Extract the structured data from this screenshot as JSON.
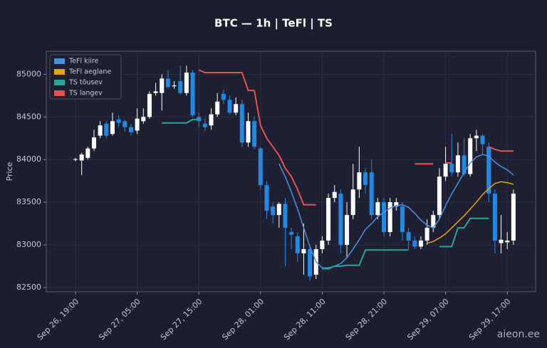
{
  "chart_data": {
    "type": "candlestick",
    "title": "BTC — 1h  |  TeFl  |  TS",
    "y_label": "Price",
    "watermark": "aieon.ee",
    "grid": true,
    "legend": "upper left",
    "up_color": "#ffffff",
    "down_color": "#1e8ae6",
    "ylim": [
      82450,
      85270
    ],
    "yticks": [
      82500,
      83000,
      83500,
      84000,
      84500,
      85000
    ],
    "categories": [
      "Sep 26, 19:00",
      null,
      null,
      null,
      null,
      null,
      null,
      null,
      null,
      null,
      "Sep 27, 05:00",
      null,
      null,
      null,
      null,
      null,
      null,
      null,
      null,
      null,
      "Sep 27, 15:00",
      null,
      null,
      null,
      null,
      null,
      null,
      null,
      null,
      null,
      "Sep 28, 01:00",
      null,
      null,
      null,
      null,
      null,
      null,
      null,
      null,
      null,
      "Sep 28, 11:00",
      null,
      null,
      null,
      null,
      null,
      null,
      null,
      null,
      null,
      "Sep 28, 21:00",
      null,
      null,
      null,
      null,
      null,
      null,
      null,
      null,
      null,
      "Sep 29, 07:00",
      null,
      null,
      null,
      null,
      null,
      null,
      null,
      null,
      null,
      "Sep 29, 17:00",
      null
    ],
    "open": [
      84000,
      83990,
      84020,
      84130,
      84280,
      84420,
      84300,
      84470,
      84450,
      84380,
      84340,
      84450,
      84500,
      84780,
      84780,
      84950,
      84860,
      84920,
      84780,
      85020,
      84500,
      84420,
      84400,
      84530,
      84770,
      84700,
      84550,
      84650,
      84200,
      84450,
      84130,
      83700,
      83450,
      83350,
      83480,
      83150,
      83100,
      82900,
      82950,
      82650,
      82950,
      83050,
      83550,
      83600,
      83000,
      83350,
      83650,
      83850,
      83850,
      83350,
      83500,
      83150,
      83450,
      83450,
      83150,
      83050,
      82980,
      83050,
      83200,
      83350,
      83800,
      83950,
      83850,
      84050,
      83830,
      84250,
      84280,
      84150,
      83600,
      83020,
      83030,
      83050
    ],
    "close": [
      84005,
      84060,
      84130,
      84260,
      84400,
      84280,
      84450,
      84430,
      84380,
      84320,
      84480,
      84500,
      84770,
      84800,
      84950,
      84850,
      84870,
      84780,
      85020,
      84520,
      84450,
      84380,
      84530,
      84680,
      84700,
      84550,
      84650,
      84200,
      84450,
      84150,
      83700,
      83400,
      83350,
      83480,
      83200,
      83120,
      82900,
      82950,
      82630,
      82950,
      83050,
      83550,
      83620,
      83000,
      83350,
      83650,
      83850,
      83700,
      83350,
      83500,
      83150,
      83500,
      83500,
      83150,
      83050,
      82980,
      83050,
      83200,
      83350,
      83800,
      83950,
      83850,
      84050,
      83830,
      84250,
      84280,
      84180,
      83600,
      83050,
      83060,
      83050,
      83600
    ],
    "high": [
      84020,
      84080,
      84150,
      84350,
      84450,
      84450,
      84550,
      84520,
      84470,
      84420,
      84600,
      84600,
      84800,
      84900,
      85000,
      85050,
      84920,
      85100,
      85100,
      85050,
      84550,
      84480,
      84600,
      84780,
      84820,
      84750,
      84730,
      84700,
      84550,
      84500,
      84150,
      83750,
      83500,
      83500,
      83550,
      83200,
      83150,
      83250,
      83000,
      83000,
      83100,
      83600,
      83700,
      83650,
      83500,
      83950,
      84150,
      83900,
      84000,
      83550,
      83550,
      83550,
      83550,
      83500,
      83200,
      83100,
      83100,
      83300,
      83400,
      83900,
      84150,
      84300,
      84200,
      84250,
      84300,
      84350,
      84300,
      84200,
      83650,
      83350,
      83150,
      83650
    ],
    "low": [
      83980,
      83820,
      84000,
      84100,
      84250,
      84250,
      84280,
      84380,
      84330,
      84280,
      84300,
      84420,
      84480,
      84750,
      84575,
      84830,
      84830,
      84760,
      84750,
      84500,
      84380,
      84330,
      84350,
      84500,
      84650,
      84530,
      84520,
      84150,
      84150,
      84120,
      83650,
      83300,
      83250,
      83200,
      82750,
      82950,
      82800,
      82650,
      82580,
      82600,
      82900,
      83000,
      83500,
      82900,
      82850,
      83300,
      83550,
      83600,
      83300,
      83300,
      83100,
      83100,
      83400,
      83050,
      82950,
      82950,
      82950,
      83000,
      83150,
      83300,
      83750,
      83800,
      83800,
      83800,
      83800,
      84100,
      84050,
      83500,
      82900,
      82900,
      82950,
      83000
    ],
    "series": [
      {
        "name": "TeFl kiire",
        "color": "#4a90e2",
        "style": "line",
        "values": [
          null,
          null,
          null,
          null,
          null,
          null,
          null,
          null,
          null,
          null,
          null,
          null,
          null,
          null,
          null,
          null,
          null,
          null,
          null,
          null,
          null,
          null,
          null,
          null,
          null,
          null,
          null,
          null,
          null,
          null,
          null,
          null,
          null,
          83950,
          83800,
          83620,
          83420,
          83200,
          82980,
          82800,
          82730,
          82730,
          82750,
          82780,
          82850,
          82950,
          83060,
          83180,
          83250,
          83330,
          83380,
          83430,
          83460,
          83470,
          83440,
          83370,
          83290,
          83230,
          83200,
          83300,
          83460,
          83600,
          83720,
          83850,
          83960,
          84030,
          84060,
          84040,
          83970,
          83920,
          83880,
          83820
        ]
      },
      {
        "name": "TeFl aeglane",
        "color": "#e3a21a",
        "style": "line",
        "values": [
          null,
          null,
          null,
          null,
          null,
          null,
          null,
          null,
          null,
          null,
          null,
          null,
          null,
          null,
          null,
          null,
          null,
          null,
          null,
          null,
          null,
          null,
          null,
          null,
          null,
          null,
          null,
          null,
          null,
          null,
          null,
          null,
          null,
          null,
          null,
          null,
          null,
          null,
          null,
          null,
          null,
          null,
          null,
          null,
          null,
          null,
          null,
          null,
          null,
          null,
          null,
          null,
          null,
          null,
          null,
          null,
          null,
          83020,
          83040,
          83080,
          83130,
          83200,
          83270,
          83340,
          83420,
          83500,
          83590,
          83660,
          83720,
          83740,
          83730,
          83710
        ]
      },
      {
        "name": "TS tõusev",
        "color": "#26a69a",
        "style": "step",
        "values": [
          null,
          null,
          null,
          null,
          null,
          null,
          null,
          null,
          null,
          null,
          null,
          null,
          null,
          null,
          84430,
          84430,
          84430,
          84430,
          84430,
          84470,
          84470,
          null,
          null,
          null,
          null,
          null,
          null,
          null,
          null,
          null,
          null,
          null,
          null,
          null,
          null,
          null,
          null,
          null,
          null,
          null,
          82720,
          82720,
          82750,
          82750,
          82760,
          82760,
          82760,
          82940,
          82940,
          82940,
          82940,
          82940,
          82940,
          82940,
          82940,
          null,
          null,
          null,
          null,
          82980,
          82980,
          82980,
          83200,
          83200,
          83310,
          83310,
          83310,
          83310,
          null,
          null,
          null,
          null
        ]
      },
      {
        "name": "TS langev",
        "color": "#e05252",
        "style": "step",
        "values": [
          null,
          null,
          null,
          null,
          null,
          null,
          null,
          null,
          null,
          null,
          null,
          null,
          null,
          null,
          null,
          null,
          null,
          null,
          null,
          null,
          85050,
          85020,
          85020,
          85020,
          85020,
          85020,
          85020,
          85020,
          84810,
          84810,
          84400,
          84250,
          84150,
          84050,
          83900,
          83800,
          83650,
          83470,
          83470,
          83470,
          null,
          null,
          null,
          null,
          null,
          null,
          null,
          null,
          null,
          null,
          null,
          null,
          null,
          null,
          null,
          83950,
          83950,
          83950,
          83950,
          null,
          83960,
          83960,
          null,
          null,
          null,
          null,
          null,
          84150,
          84120,
          84100,
          84100,
          84100
        ]
      }
    ]
  }
}
